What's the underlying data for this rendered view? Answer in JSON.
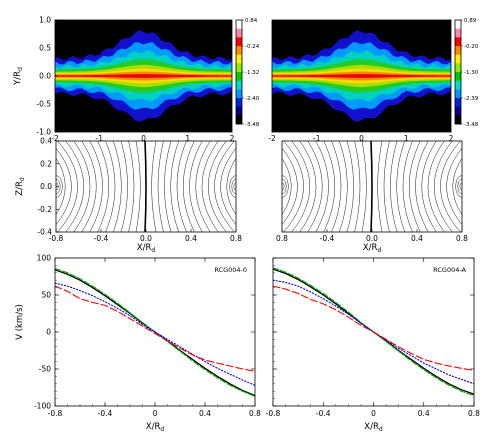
{
  "colors": {
    "black": "#000000",
    "red": "#ff0000",
    "blue": "#0000ff",
    "green": "#00aa00"
  },
  "density_panels": [
    {
      "id": "left",
      "yticks": [
        "1.0",
        "0.5",
        "0.0",
        "-0.5",
        "-1.0"
      ],
      "xticks": [
        "-2",
        "-1",
        "0",
        "1",
        "2"
      ],
      "ylabel": "Y/R",
      "ylabel_sub": "d",
      "colorbar_labels": [
        "0.84",
        "-0.24",
        "-1.32",
        "-2.40",
        "-3.48"
      ]
    },
    {
      "id": "right",
      "yticks": [],
      "xticks": [
        "-2",
        "-1",
        "0",
        "1",
        "2"
      ],
      "ylabel": "",
      "ylabel_sub": "",
      "colorbar_labels": [
        "0.89",
        "-0.20",
        "-1.30",
        "-2.39",
        "-3.48"
      ]
    }
  ],
  "contour_panels": [
    {
      "id": "left",
      "yticks": [
        "0.4",
        "0.2",
        "0.0",
        "-0.2",
        "-0.4"
      ],
      "xticks": [
        "-0.8",
        "-0.4",
        "0.0",
        "0.4",
        "0.8"
      ],
      "ylabel": "Z/R",
      "ylabel_sub": "d",
      "xlabel": "X/R",
      "xlabel_sub": "d"
    },
    {
      "id": "right",
      "yticks": [],
      "xticks": [
        "0.8",
        "-0.4",
        "0.0",
        "0.4",
        "0.8"
      ],
      "ylabel": "",
      "ylabel_sub": "",
      "xlabel": "X/R",
      "xlabel_sub": "d"
    }
  ],
  "chart_data": [
    {
      "type": "line",
      "panel": "RCG004-0",
      "xlim": [
        -0.8,
        0.8
      ],
      "ylim": [
        -100,
        100
      ],
      "xticks": [
        "-0.8",
        "-0.4",
        "0",
        "0.4",
        "0.8"
      ],
      "yticks": [
        "100",
        "50",
        "0",
        "-50",
        "-100"
      ],
      "xlabel": "X/R",
      "xlabel_sub": "d",
      "ylabel": "V (km/s)",
      "x": [
        -0.8,
        -0.7,
        -0.6,
        -0.5,
        -0.4,
        -0.3,
        -0.2,
        -0.1,
        0.0,
        0.1,
        0.2,
        0.3,
        0.4,
        0.5,
        0.6,
        0.7,
        0.8
      ],
      "series": [
        {
          "style": "solid-black",
          "values": [
            84,
            78,
            70,
            60,
            49,
            37,
            25,
            12,
            0,
            -12,
            -25,
            -37,
            -49,
            -60,
            -70,
            -79,
            -86
          ]
        },
        {
          "style": "dash-green",
          "values": [
            86,
            80,
            72,
            62,
            51,
            39,
            26,
            13,
            0,
            -13,
            -26,
            -39,
            -51,
            -62,
            -72,
            -80,
            -87
          ]
        },
        {
          "style": "dot-blue",
          "values": [
            66,
            62,
            56,
            49,
            41,
            32,
            22,
            10,
            0,
            -10,
            -20,
            -30,
            -40,
            -49,
            -57,
            -65,
            -72
          ]
        },
        {
          "style": "dash-red",
          "values": [
            62,
            55,
            45,
            40,
            36,
            28,
            18,
            8,
            -2,
            -12,
            -22,
            -31,
            -38,
            -42,
            -46,
            -50,
            -53
          ]
        }
      ]
    },
    {
      "type": "line",
      "panel": "RCG004-A",
      "xlim": [
        -0.8,
        0.8
      ],
      "ylim": [
        -100,
        100
      ],
      "xticks": [
        "-0.8",
        "-0.4",
        "0",
        "0.4",
        "0.8"
      ],
      "yticks": [],
      "xlabel": "X/R",
      "xlabel_sub": "d",
      "ylabel": "",
      "x": [
        -0.8,
        -0.7,
        -0.6,
        -0.5,
        -0.4,
        -0.3,
        -0.2,
        -0.1,
        0.0,
        0.1,
        0.2,
        0.3,
        0.4,
        0.5,
        0.6,
        0.7,
        0.8
      ],
      "series": [
        {
          "style": "solid-black",
          "values": [
            85,
            79,
            71,
            61,
            50,
            38,
            25,
            12,
            0,
            -12,
            -25,
            -37,
            -49,
            -60,
            -70,
            -78,
            -84
          ]
        },
        {
          "style": "dash-green",
          "values": [
            87,
            81,
            73,
            63,
            52,
            40,
            27,
            13,
            0,
            -13,
            -26,
            -39,
            -51,
            -62,
            -72,
            -80,
            -86
          ]
        },
        {
          "style": "dot-blue",
          "values": [
            70,
            67,
            62,
            54,
            45,
            35,
            24,
            12,
            0,
            -11,
            -22,
            -32,
            -42,
            -50,
            -58,
            -64,
            -70
          ]
        },
        {
          "style": "dash-red",
          "values": [
            62,
            58,
            52,
            44,
            38,
            30,
            20,
            9,
            0,
            -10,
            -20,
            -29,
            -37,
            -42,
            -46,
            -49,
            -52
          ]
        }
      ]
    }
  ]
}
